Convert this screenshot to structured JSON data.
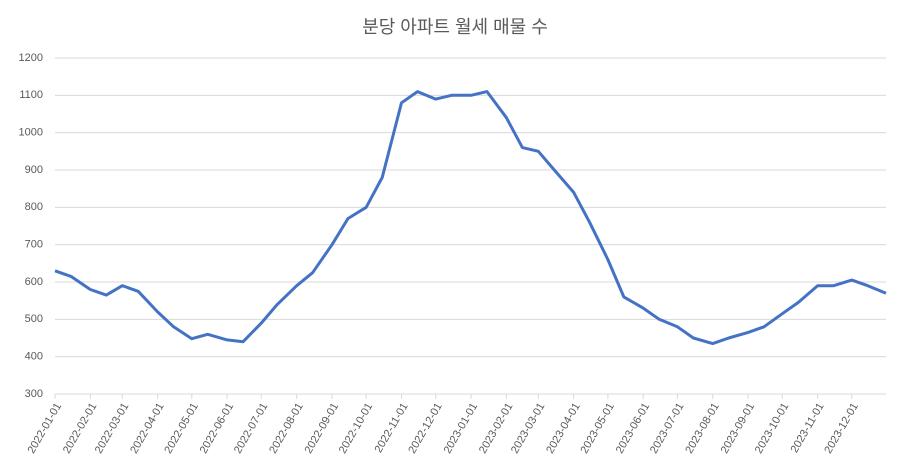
{
  "chart_data": {
    "type": "line",
    "title": "분당 아파트 월세 매물 수",
    "x": [
      "2022-01-01",
      "2022-01-15",
      "2022-02-01",
      "2022-02-15",
      "2022-03-01",
      "2022-03-15",
      "2022-04-01",
      "2022-04-15",
      "2022-05-01",
      "2022-05-15",
      "2022-06-01",
      "2022-06-15",
      "2022-07-01",
      "2022-07-15",
      "2022-08-01",
      "2022-08-15",
      "2022-09-01",
      "2022-09-15",
      "2022-10-01",
      "2022-10-15",
      "2022-11-01",
      "2022-11-15",
      "2022-12-01",
      "2022-12-15",
      "2023-01-01",
      "2023-01-15",
      "2023-02-01",
      "2023-02-15",
      "2023-03-01",
      "2023-03-15",
      "2023-04-01",
      "2023-04-15",
      "2023-05-01",
      "2023-05-15",
      "2023-06-01",
      "2023-06-15",
      "2023-07-01",
      "2023-07-15",
      "2023-08-01",
      "2023-08-15",
      "2023-09-01",
      "2023-09-15",
      "2023-10-01",
      "2023-10-15",
      "2023-11-01",
      "2023-11-15",
      "2023-12-01",
      "2023-12-15",
      "2023-12-31"
    ],
    "series": [
      {
        "color": "#4472c4",
        "values": [
          630,
          615,
          580,
          565,
          590,
          575,
          520,
          480,
          448,
          460,
          445,
          440,
          490,
          540,
          590,
          625,
          700,
          770,
          800,
          880,
          1080,
          1110,
          1090,
          1100,
          1100,
          1110,
          1040,
          960,
          950,
          900,
          840,
          760,
          660,
          560,
          530,
          500,
          480,
          450,
          435,
          450,
          465,
          480,
          515,
          545,
          590,
          590,
          605,
          590,
          570
        ]
      }
    ],
    "xlim": [
      "2022-01-01",
      "2023-12-31"
    ],
    "xticks": [
      "2022-01-01",
      "2022-02-01",
      "2022-03-01",
      "2022-04-01",
      "2022-05-01",
      "2022-06-01",
      "2022-07-01",
      "2022-08-01",
      "2022-09-01",
      "2022-10-01",
      "2022-11-01",
      "2022-12-01",
      "2023-01-01",
      "2023-02-01",
      "2023-03-01",
      "2023-04-01",
      "2023-05-01",
      "2023-06-01",
      "2023-07-01",
      "2023-08-01",
      "2023-09-01",
      "2023-10-01",
      "2023-11-01",
      "2023-12-01"
    ],
    "ylim": [
      300,
      1200
    ],
    "yticks": [
      300,
      400,
      500,
      600,
      700,
      800,
      900,
      1000,
      1100,
      1200
    ],
    "grid": true
  }
}
